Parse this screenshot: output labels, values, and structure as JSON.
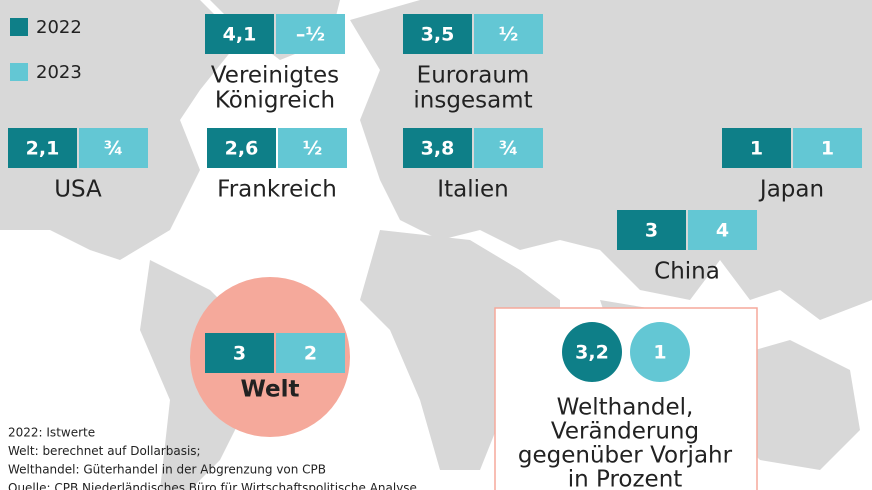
{
  "legend": [
    {
      "label": "2022",
      "color": "#0e7f88"
    },
    {
      "label": "2023",
      "color": "#63c7d4"
    }
  ],
  "regions": [
    {
      "lines": [
        "Vereinigtes",
        "Königreich"
      ],
      "v2022": "4,1",
      "v2023": "–½"
    },
    {
      "lines": [
        "Euroraum",
        "insgesamt"
      ],
      "v2022": "3,5",
      "v2023": "½"
    },
    {
      "lines": [
        "USA"
      ],
      "v2022": "2,1",
      "v2023": "¾"
    },
    {
      "lines": [
        "Frankreich"
      ],
      "v2022": "2,6",
      "v2023": "½"
    },
    {
      "lines": [
        "Italien"
      ],
      "v2022": "3,8",
      "v2023": "¾"
    },
    {
      "lines": [
        "Japan"
      ],
      "v2022": "1",
      "v2023": "1"
    },
    {
      "lines": [
        "China"
      ],
      "v2022": "3",
      "v2023": "4"
    }
  ],
  "world": {
    "label": "Welt",
    "v2022": "3",
    "v2023": "2"
  },
  "trade": {
    "lines": [
      "Welthandel,",
      "Veränderung",
      "gegenüber Vorjahr",
      "in Prozent"
    ],
    "v2022": "3,2",
    "v2023": "1"
  },
  "notes": [
    "2022: Istwerte",
    "Welt: berechnet auf Dollarbasis;",
    "Welthandel: Güterhandel in der Abgrenzung von CPB",
    "Quelle: CPB Niederländisches Büro für Wirtschaftspolitische Analyse"
  ]
}
